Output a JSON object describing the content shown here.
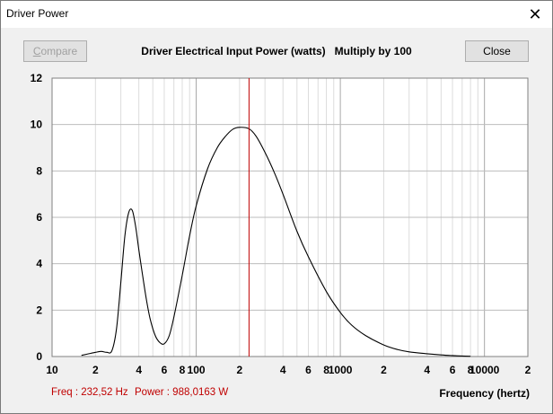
{
  "window": {
    "title": "Driver Power",
    "close_glyph": "✕"
  },
  "toolbar": {
    "compare_label_first": "C",
    "compare_label_rest": "ompare",
    "close_label": "Close"
  },
  "heading": "Driver Electrical Input Power (watts)   Multiply by 100",
  "status": {
    "freq": "Freq : 232,52 Hz",
    "power": "Power : 988,0163 W"
  },
  "chart_data": {
    "type": "line",
    "xscale": "log",
    "xlim": [
      10,
      20000
    ],
    "ylim": [
      0,
      12
    ],
    "xlabel": "Frequency (hertz)",
    "y_ticks": [
      "0",
      "2",
      "4",
      "6",
      "8",
      "10",
      "12"
    ],
    "x_tick_labels": [
      {
        "value": 10,
        "label": "10"
      },
      {
        "value": 20,
        "label": "2"
      },
      {
        "value": 40,
        "label": "4"
      },
      {
        "value": 60,
        "label": "6"
      },
      {
        "value": 80,
        "label": "8"
      },
      {
        "value": 100,
        "label": "100"
      },
      {
        "value": 200,
        "label": "2"
      },
      {
        "value": 400,
        "label": "4"
      },
      {
        "value": 600,
        "label": "6"
      },
      {
        "value": 800,
        "label": "8"
      },
      {
        "value": 1000,
        "label": "1000"
      },
      {
        "value": 2000,
        "label": "2"
      },
      {
        "value": 4000,
        "label": "4"
      },
      {
        "value": 6000,
        "label": "6"
      },
      {
        "value": 8000,
        "label": "8"
      },
      {
        "value": 10000,
        "label": "10000"
      },
      {
        "value": 20000,
        "label": "2"
      }
    ],
    "cursor_x": 232.52,
    "series": [
      {
        "x": [
          16,
          18,
          20,
          22,
          24,
          26,
          28,
          30,
          32,
          34,
          36,
          38,
          40,
          42,
          45,
          48,
          52,
          56,
          60,
          65,
          70,
          80,
          90,
          100,
          120,
          140,
          160,
          180,
          200,
          232,
          260,
          300,
          350,
          400,
          500,
          600,
          800,
          1000,
          1200,
          1500,
          2000,
          2500,
          3000,
          4000,
          5000,
          6000,
          7000,
          8000
        ],
        "y": [
          0.05,
          0.12,
          0.18,
          0.22,
          0.18,
          0.25,
          1.2,
          3.2,
          5.2,
          6.2,
          6.3,
          5.6,
          4.6,
          3.7,
          2.5,
          1.6,
          0.9,
          0.6,
          0.55,
          0.9,
          1.7,
          3.5,
          5.2,
          6.5,
          8.1,
          9.0,
          9.5,
          9.8,
          9.88,
          9.82,
          9.5,
          8.8,
          7.9,
          7.0,
          5.4,
          4.3,
          2.8,
          1.9,
          1.35,
          0.9,
          0.5,
          0.3,
          0.2,
          0.12,
          0.07,
          0.04,
          0.02,
          0.01
        ]
      }
    ],
    "colors": {
      "line": "#000000",
      "cursor": "#c00000",
      "grid": "#c8c8c8",
      "plot_bg": "#ffffff"
    }
  }
}
